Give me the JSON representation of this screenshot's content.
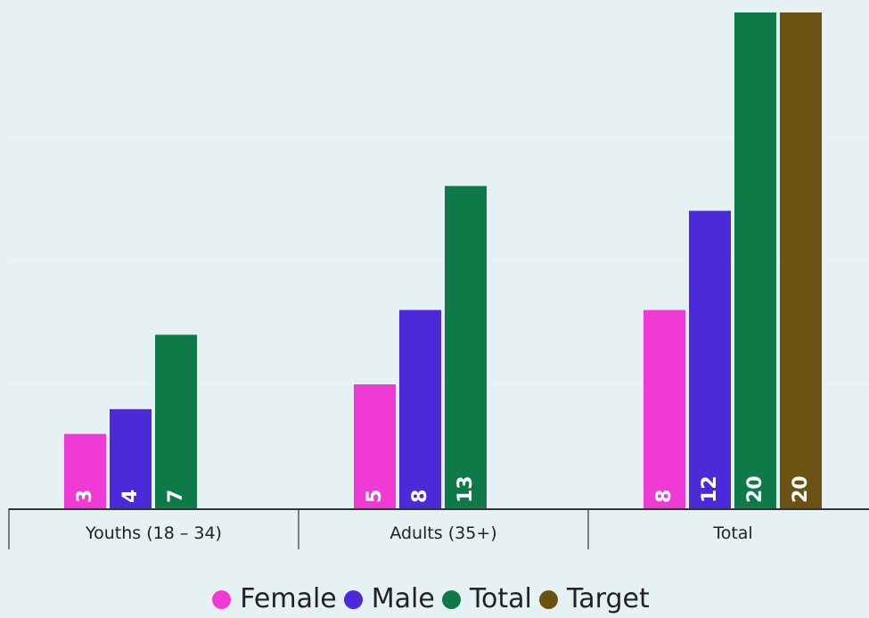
{
  "chart_data": {
    "type": "bar",
    "categories": [
      "Youths (18 – 34)",
      "Adults (35+)",
      "Total"
    ],
    "series": [
      {
        "name": "Female",
        "color": "#f03ad6",
        "values": [
          3,
          5,
          8
        ]
      },
      {
        "name": "Male",
        "color": "#4a2ad9",
        "values": [
          4,
          8,
          12
        ]
      },
      {
        "name": "Total",
        "color": "#0d7a47",
        "values": [
          7,
          13,
          20
        ]
      },
      {
        "name": "Target",
        "color": "#6b5112",
        "values": [
          null,
          null,
          20
        ]
      }
    ],
    "ylim": [
      0,
      20
    ],
    "grid": true,
    "legend_position": "bottom"
  }
}
